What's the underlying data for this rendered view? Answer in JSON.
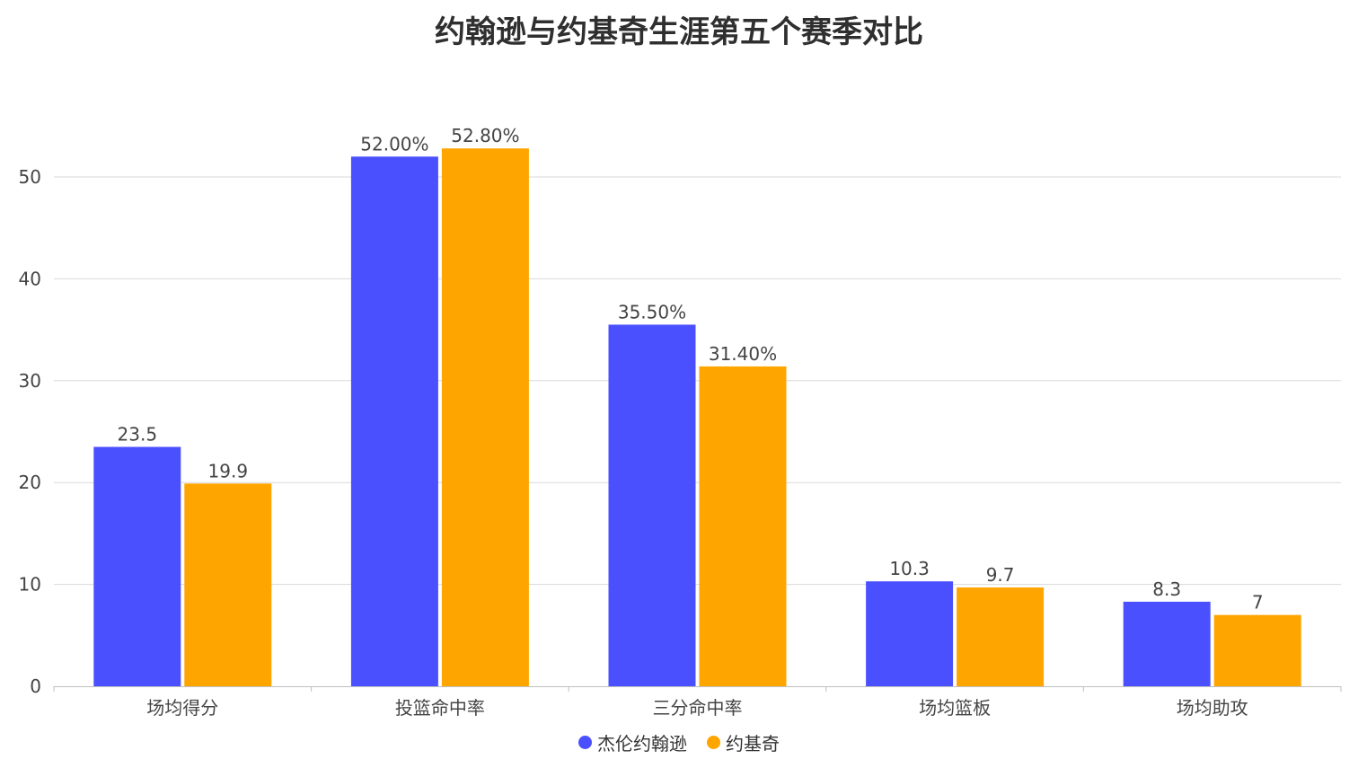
{
  "chart_data": {
    "type": "bar",
    "title": "约翰逊与约基奇生涯第五个赛季对比",
    "categories": [
      "场均得分",
      "投篮命中率",
      "三分命中率",
      "场均篮板",
      "场均助攻"
    ],
    "series": [
      {
        "name": "杰伦约翰逊",
        "color": "#4b50ff",
        "values": [
          23.5,
          52.0,
          35.5,
          10.3,
          8.3
        ],
        "labels": [
          "23.5",
          "52.00%",
          "35.50%",
          "10.3",
          "8.3"
        ]
      },
      {
        "name": "约基奇",
        "color": "#ffa500",
        "values": [
          19.9,
          52.8,
          31.4,
          9.7,
          7
        ],
        "labels": [
          "19.9",
          "52.80%",
          "31.40%",
          "9.7",
          "7"
        ]
      }
    ],
    "ylim": [
      0,
      55
    ],
    "yticks": [
      "0",
      "10",
      "20",
      "30",
      "40",
      "50"
    ],
    "grid": true,
    "legend_position": "bottom"
  }
}
